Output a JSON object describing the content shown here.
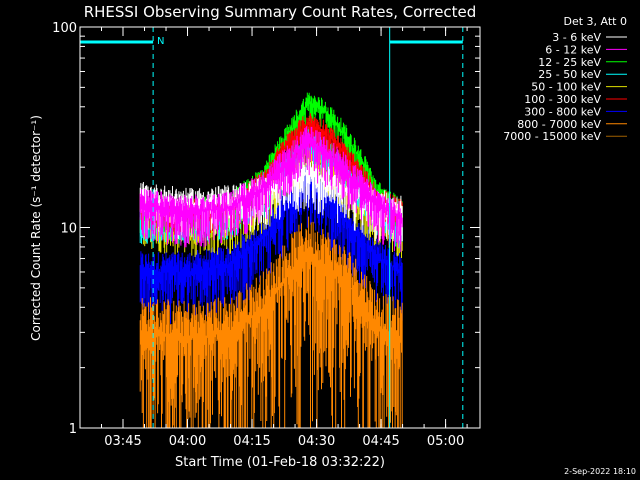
{
  "chart_data": {
    "type": "line",
    "title": "RHESSI Observing Summary Count Rates, Corrected",
    "xlabel": "Start Time (01-Feb-18 03:32:22)",
    "ylabel": "Corrected Count Rate (s⁻¹ detector⁻¹)",
    "y_scale": "log",
    "ylim": [
      1,
      100
    ],
    "xlim": [
      "03:35",
      "05:08"
    ],
    "x_ticks": [
      "03:45",
      "04:00",
      "04:15",
      "04:30",
      "04:45",
      "05:00"
    ],
    "y_ticks": [
      "1",
      "10",
      "100"
    ],
    "grid": false,
    "legend_position": "top-right",
    "legend_header": "Det 3, Att 0",
    "timestamp": "2-Sep-2022 18:10",
    "flag_label": "N",
    "markers": {
      "solid_cyan_times": [
        "03:35",
        "04:47"
      ],
      "dashed_cyan_times": [
        "03:52",
        "05:04"
      ],
      "night_bars": [
        [
          "03:35",
          "03:52"
        ],
        [
          "04:47",
          "05:04"
        ]
      ]
    },
    "data_interval": [
      "03:49",
      "04:50"
    ],
    "series": [
      {
        "name": "3 - 6 keV",
        "color": "#ffffff",
        "x": [
          "03:49",
          "04:00",
          "04:10",
          "04:18",
          "04:24",
          "04:28",
          "04:32",
          "04:38",
          "04:44",
          "04:50"
        ],
        "y": [
          14,
          13,
          13.5,
          15,
          18,
          19,
          17,
          15,
          13,
          12
        ]
      },
      {
        "name": "6 - 12 keV",
        "color": "#ff00ff",
        "x": [
          "03:49",
          "04:00",
          "04:10",
          "04:18",
          "04:24",
          "04:28",
          "04:32",
          "04:38",
          "04:44",
          "04:50"
        ],
        "y": [
          13,
          12,
          12.5,
          16,
          22,
          27,
          24,
          18,
          13,
          11
        ]
      },
      {
        "name": "12 - 25 keV",
        "color": "#00ff00",
        "x": [
          "03:49",
          "04:00",
          "04:10",
          "04:18",
          "04:24",
          "04:28",
          "04:32",
          "04:38",
          "04:44",
          "04:50"
        ],
        "y": [
          13,
          12,
          13,
          18,
          30,
          42,
          38,
          26,
          15,
          12
        ]
      },
      {
        "name": "25 - 50 keV",
        "color": "#00ffff",
        "x": [
          "03:49",
          "04:00",
          "04:10",
          "04:18",
          "04:24",
          "04:28",
          "04:32",
          "04:38",
          "04:44",
          "04:50"
        ],
        "y": [
          11,
          11,
          11.5,
          15,
          22,
          28,
          25,
          18,
          12,
          10
        ]
      },
      {
        "name": "50 - 100 keV",
        "color": "#e0e000",
        "x": [
          "03:49",
          "04:00",
          "04:10",
          "04:18",
          "04:24",
          "04:28",
          "04:32",
          "04:38",
          "04:44",
          "04:50"
        ],
        "y": [
          11,
          10,
          10.5,
          13,
          20,
          24,
          21,
          15,
          11,
          10
        ]
      },
      {
        "name": "100 - 300 keV",
        "color": "#ff0000",
        "x": [
          "03:49",
          "04:00",
          "04:10",
          "04:18",
          "04:24",
          "04:28",
          "04:32",
          "04:38",
          "04:44",
          "04:50"
        ],
        "y": [
          13,
          12,
          12.5,
          17,
          27,
          33,
          30,
          21,
          14,
          12
        ]
      },
      {
        "name": "300 - 800 keV",
        "color": "#0000ff",
        "x": [
          "03:49",
          "04:00",
          "04:10",
          "04:18",
          "04:24",
          "04:28",
          "04:32",
          "04:38",
          "04:44",
          "04:50"
        ],
        "y": [
          6,
          6,
          6.5,
          9,
          14,
          17,
          15,
          10,
          7,
          6
        ]
      },
      {
        "name": "800 - 7000 keV",
        "color": "#ff8800",
        "x": [
          "03:49",
          "04:00",
          "04:10",
          "04:18",
          "04:24",
          "04:28",
          "04:32",
          "04:38",
          "04:44",
          "04:50"
        ],
        "y": [
          3,
          2.8,
          3,
          4,
          6,
          7.5,
          6.5,
          5,
          3.2,
          2.8
        ]
      },
      {
        "name": "7000 - 15000 keV",
        "color": "#a06000",
        "x": [],
        "y": []
      }
    ]
  }
}
